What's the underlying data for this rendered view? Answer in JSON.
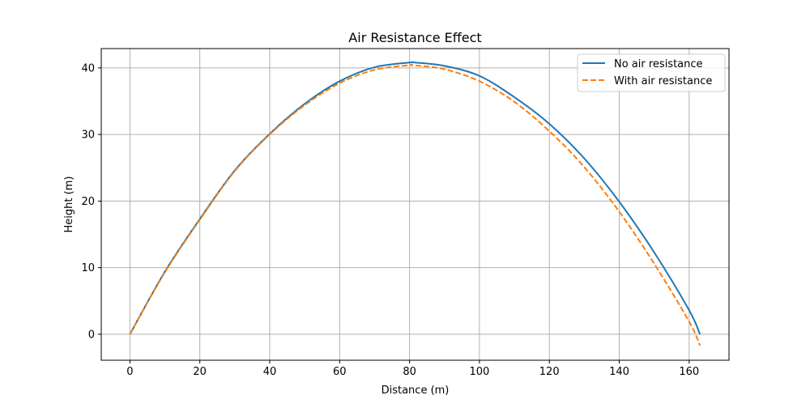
{
  "chart_data": {
    "type": "line",
    "title": "Air Resistance Effect",
    "xlabel": "Distance (m)",
    "ylabel": "Height (m)",
    "xlim": [
      -8.2,
      171.4
    ],
    "ylim": [
      -3.9,
      42.9
    ],
    "xticks": [
      0,
      20,
      40,
      60,
      80,
      100,
      120,
      140,
      160
    ],
    "yticks": [
      0,
      10,
      20,
      30,
      40
    ],
    "grid": true,
    "legend_position": "top-right",
    "colors": {
      "no_air_resistance": "#1f77b4",
      "with_air_resistance": "#ff7f0e",
      "grid": "#b0b0b0",
      "axes": "#000000"
    },
    "series": [
      {
        "name": "No air resistance",
        "style": "solid",
        "x": [
          0,
          10,
          20,
          30,
          40,
          50,
          60,
          70,
          80,
          81.55,
          90,
          100,
          110,
          120,
          130,
          140,
          150,
          160,
          163.1
        ],
        "y": [
          0,
          9.4,
          17.3,
          24.6,
          30.1,
          34.6,
          38.0,
          40.1,
          40.8,
          40.8,
          40.3,
          38.8,
          35.6,
          31.6,
          26.4,
          19.9,
          12.3,
          3.6,
          0
        ]
      },
      {
        "name": "With air resistance",
        "style": "dashed",
        "x": [
          0,
          10,
          20,
          30,
          40,
          50,
          60,
          70,
          80,
          81,
          90,
          100,
          110,
          120,
          130,
          140,
          150,
          160,
          163.1
        ],
        "y": [
          0,
          9.3,
          17.2,
          24.5,
          30.0,
          34.4,
          37.7,
          39.7,
          40.4,
          40.4,
          39.8,
          38.0,
          34.9,
          30.5,
          25.1,
          18.4,
          10.6,
          1.9,
          -1.7
        ]
      }
    ]
  }
}
